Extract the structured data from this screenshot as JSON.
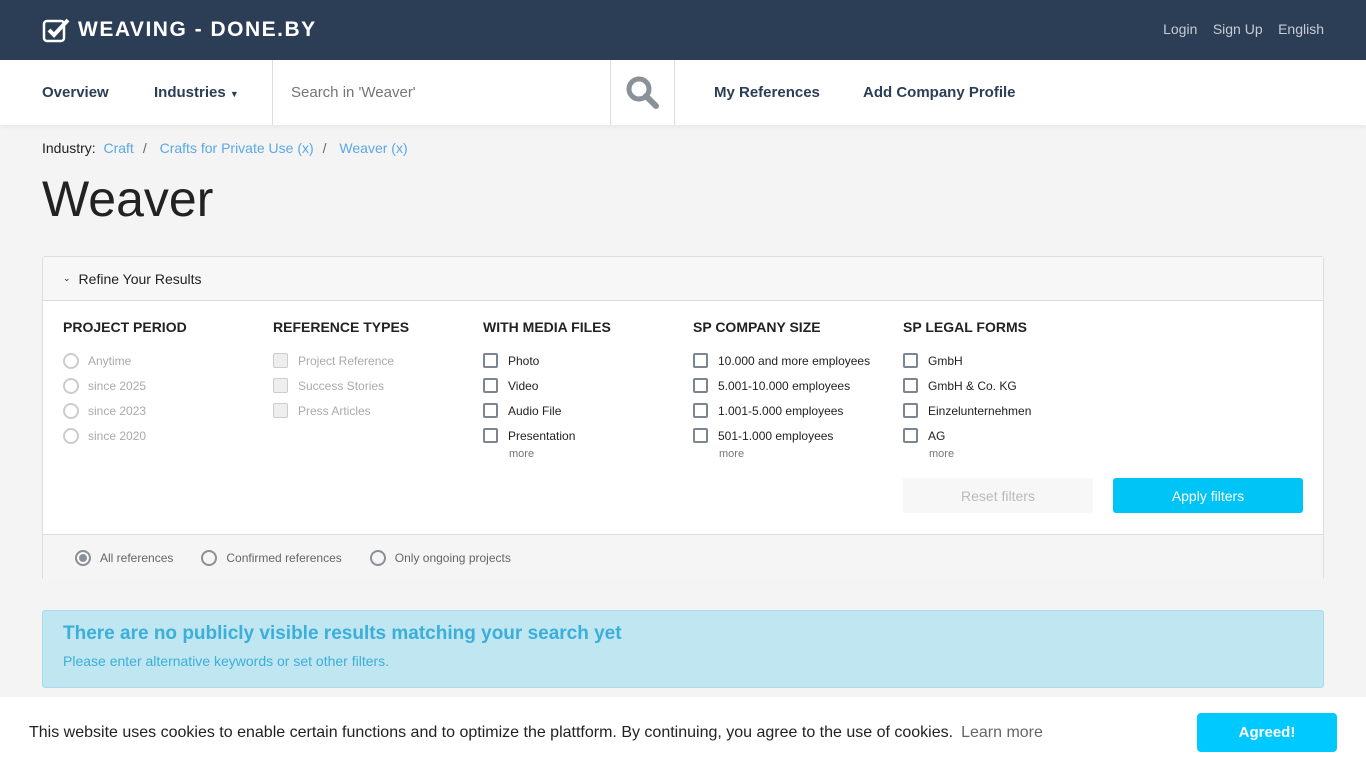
{
  "header": {
    "brand": "WEAVING - DONE.BY",
    "links": [
      "Login",
      "Sign Up",
      "English"
    ]
  },
  "nav": {
    "overview": "Overview",
    "industries": "Industries",
    "search_placeholder": "Search in 'Weaver'",
    "my_references": "My References",
    "add_company": "Add Company Profile"
  },
  "breadcrumb": {
    "label": "Industry:",
    "items": [
      "Craft",
      "Crafts for Private Use (x)",
      "Weaver (x)"
    ]
  },
  "page_title": "Weaver",
  "refine": {
    "title": "Refine Your Results",
    "columns": [
      {
        "title": "PROJECT PERIOD",
        "options": [
          "Anytime",
          "since 2025",
          "since 2023",
          "since 2020"
        ]
      },
      {
        "title": "REFERENCE TYPES",
        "options": [
          "Project Reference",
          "Success Stories",
          "Press Articles"
        ]
      },
      {
        "title": "WITH MEDIA FILES",
        "options": [
          "Photo",
          "Video",
          "Audio File",
          "Presentation"
        ],
        "more": "more"
      },
      {
        "title": "SP COMPANY SIZE",
        "options": [
          "10.000 and more employees",
          "5.001-10.000 employees",
          "1.001-5.000 employees",
          "501-1.000 employees"
        ],
        "more": "more"
      },
      {
        "title": "SP LEGAL FORMS",
        "options": [
          "GmbH",
          "GmbH & Co. KG",
          "Einzelunternehmen",
          "AG"
        ],
        "more": "more"
      }
    ],
    "reset": "Reset filters",
    "apply": "Apply filters",
    "scope": [
      "All references",
      "Confirmed references",
      "Only ongoing projects"
    ],
    "scope_selected": "All references"
  },
  "alert": {
    "title": "There are no publicly visible results matching your search yet",
    "text": "Please enter alternative keywords or set other filters."
  },
  "cookie": {
    "text": "This website uses cookies to enable certain functions and to optimize the plattform. By continuing, you agree to the use of cookies.",
    "learn_more": "Learn more",
    "agree": "Agreed!"
  }
}
